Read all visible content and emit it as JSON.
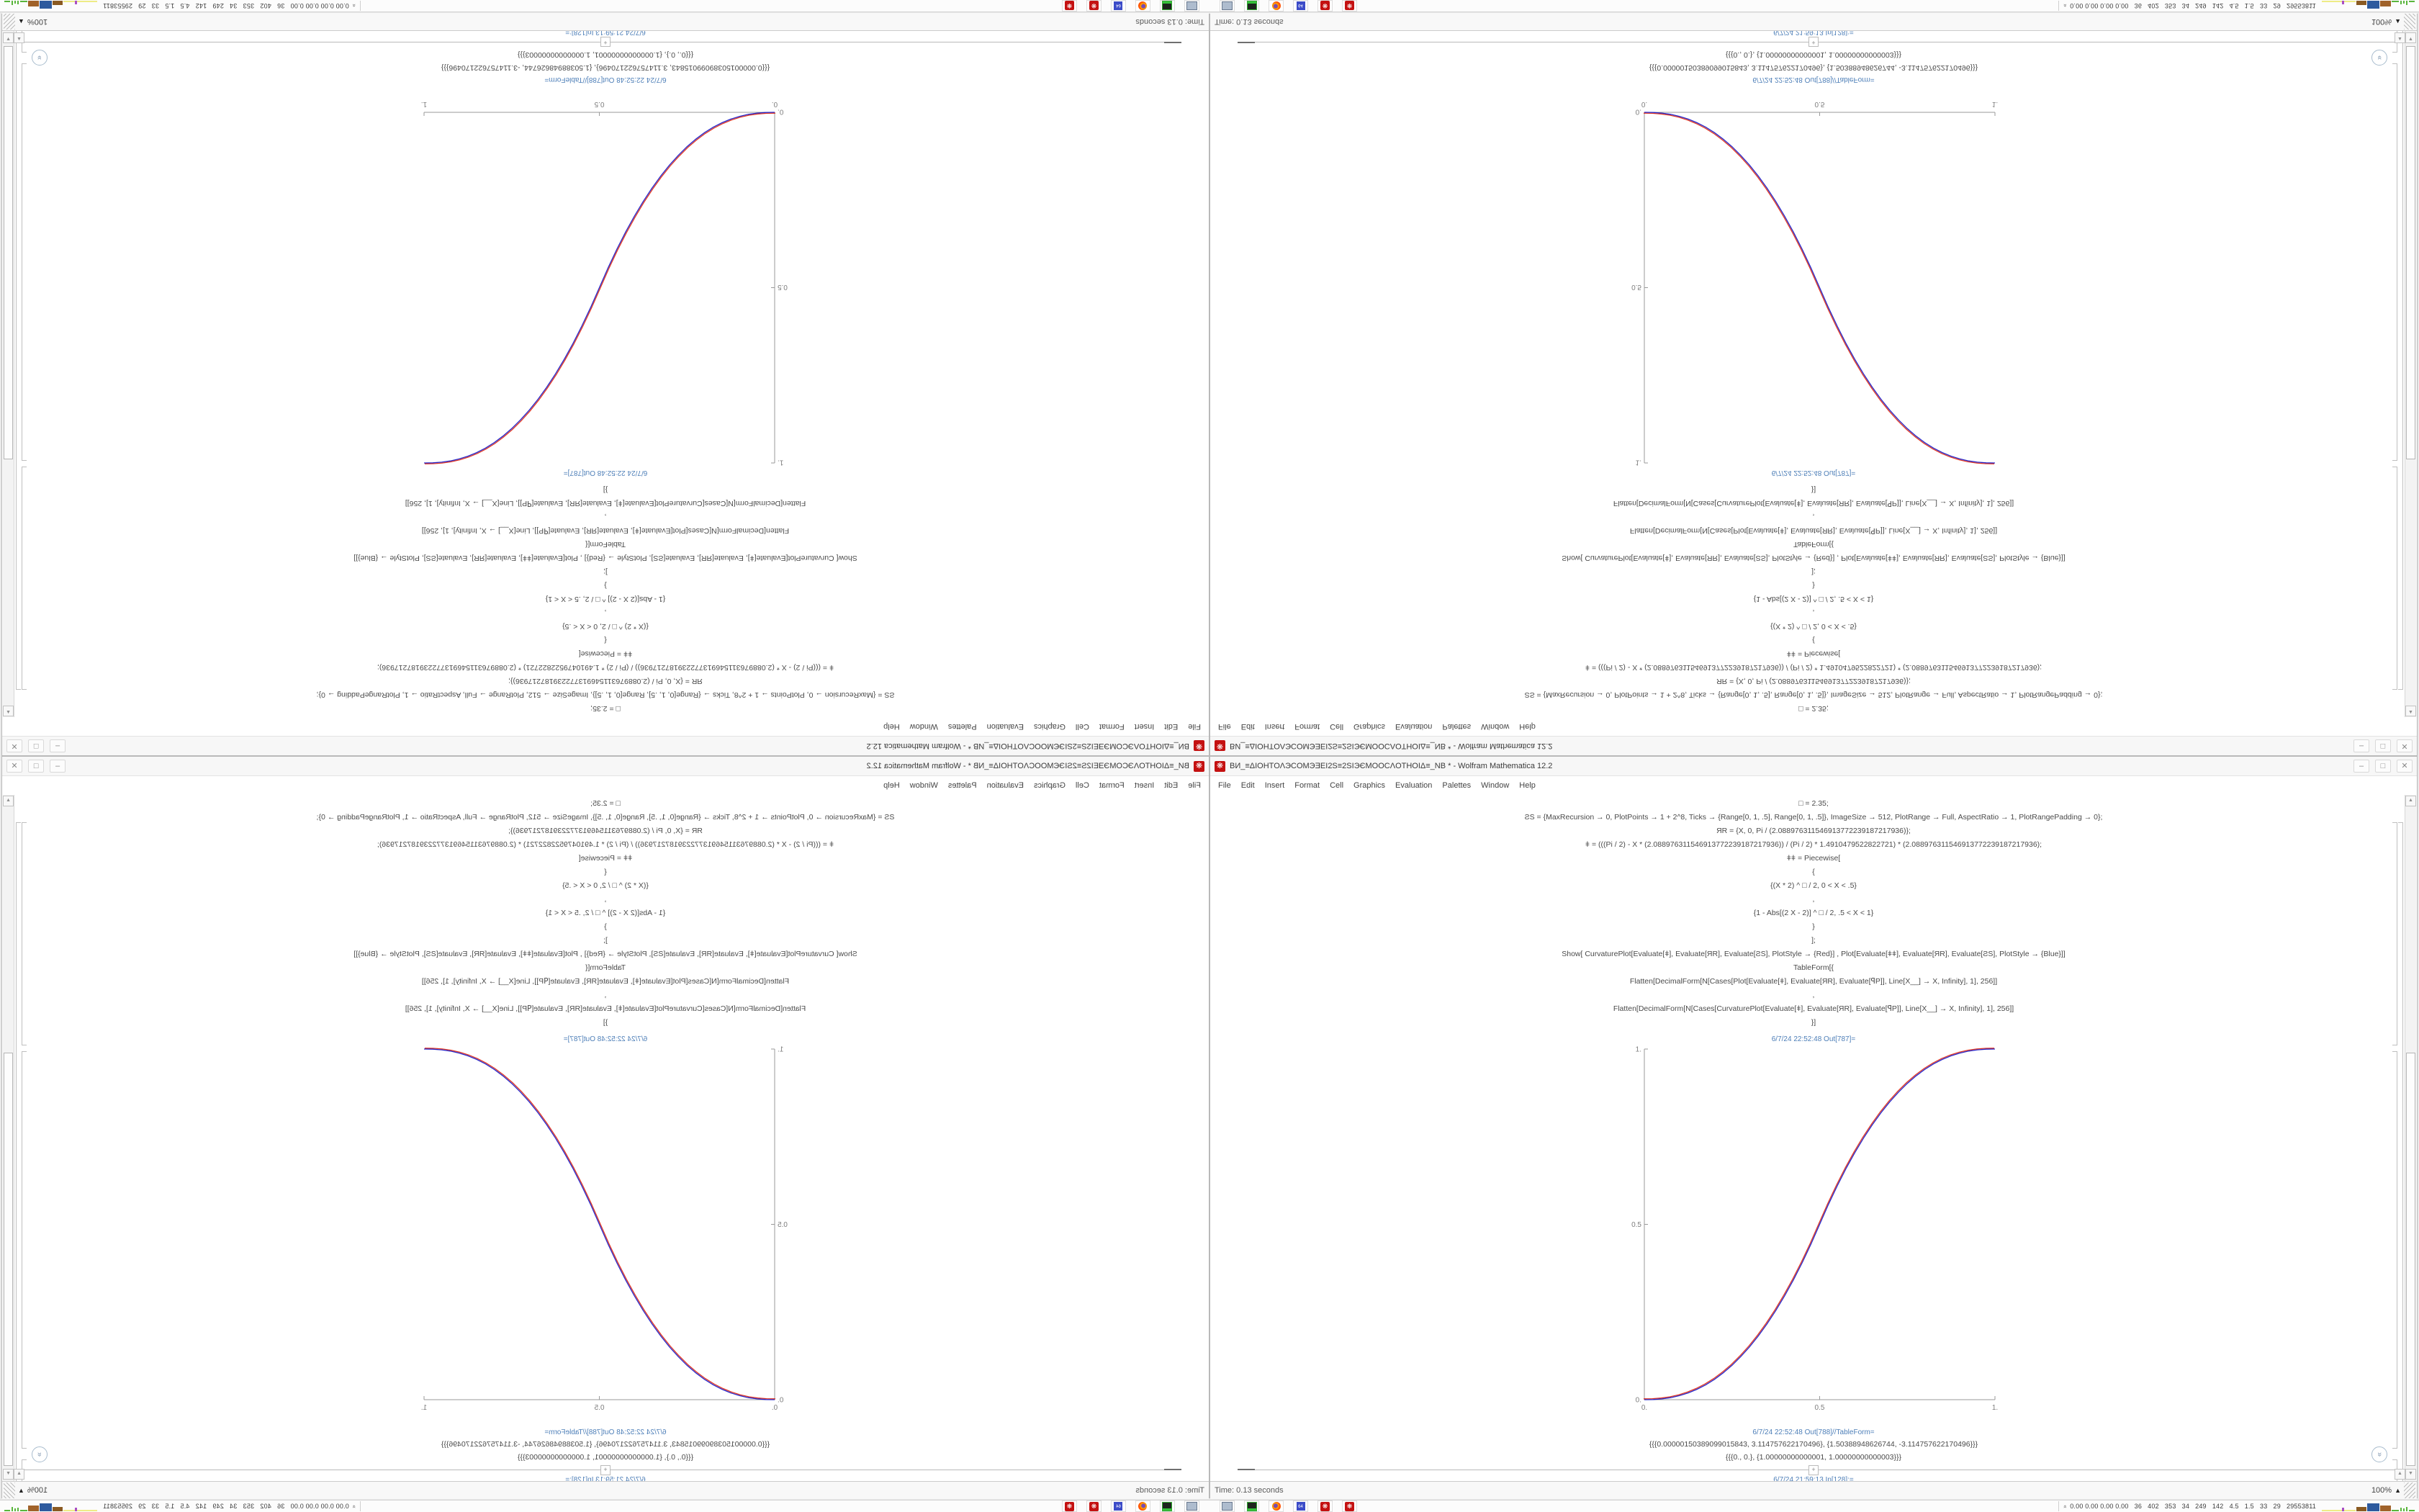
{
  "window": {
    "title": "ВИ_≡ΔIOHTOΛЭCOMЭƎEI2S≡2SIЭЄMOOCΛOTHOIΔ≡_NB * - Wolfram Mathematica 12.2",
    "app_icon_glyph": "❋",
    "menu": [
      "File",
      "Edit",
      "Insert",
      "Format",
      "Cell",
      "Graphics",
      "Evaluation",
      "Palettes",
      "Window",
      "Help"
    ],
    "controls": {
      "minimize": "–",
      "maximize": "□",
      "close": "✕"
    }
  },
  "notebook": {
    "code_lines": [
      "□ = 2.35;",
      "ƧS = {MaxRecursion → 0, PlotPoints → 1 + 2^8, Ticks → {Range[0, 1, .5], Range[0, 1, .5]}, ImageSize → 512, PlotRange → Full, AspectRatio → 1, PlotRangePadding → 0};",
      "ЯR = {X, 0, Pi / (2.088976311546913772239187217936)};",
      "ǂ = (((Pi / 2) - X * (2.088976311546913772239187217936)) / (Pi / 2) * 1.4910479522822721) * (2.088976311546913772239187217936);",
      "ǂǂ = Piecewise[",
      "{",
      "{(X * 2) ^ □ / 2, 0 < X < .5}",
      ",",
      "{1 - Abs[(2 X - 2)] ^ □ / 2, .5 < X < 1}",
      "}",
      "];",
      "Show[  CurvaturePlot[Evaluate[ǂ], Evaluate[ЯR], Evaluate[ƧS], PlotStyle → {Red}]  ,  Plot[Evaluate[ǂǂ], Evaluate[ЯR], Evaluate[ƧS], PlotStyle → {Blue}]]",
      "TableForm[{",
      "Flatten[DecimalForm[N[Cases[Plot[Evaluate[ǂ], Evaluate[ЯR], Evaluate[ꟼP]], Line[X__] → X, Infinity], 1], 256]]",
      ",",
      "Flatten[DecimalForm[N[Cases[CurvaturePlot[Evaluate[ǂ], Evaluate[ЯR], Evaluate[ꟼP]], Line[X__] → X, Infinity], 1], 256]]",
      "}]"
    ],
    "out_plot_label": "6/7/24 22:52:48 Out[787]=",
    "out_table_label": "6/7/24 22:52:48 Out[788]//TableForm=",
    "table_line1": "{{{0.00000150389099015843, 3.114757622170496}, {1.50388948626744, -3.114757622170496}}}",
    "table_line2": "{{{0., 0.}, {1.00000000000001, 1.00000000000003}}}",
    "next_in_label": "6/7/24 21:59:13 In[128]:=",
    "insert_plus": "+",
    "elide_chevron": "»"
  },
  "scrollbar": {
    "up": "▲",
    "down": "▼"
  },
  "statusbar": {
    "left": "Time: 0.13 seconds",
    "zoom": "100%",
    "zoom_triangle": "▲"
  },
  "taskbar": {
    "icons": [
      "computer-monitor",
      "disk-device",
      "firefox",
      "floppy-64",
      "mathematica",
      "mathematica"
    ],
    "floppy_label": "64",
    "mma_glyph": "❋",
    "tray_chevron": "»",
    "tray_text": "0.00 0.00 0.00 0.00   36   402   353   34   249   142   4.5   1.5   33   29   29553811",
    "sparkline": [
      {
        "w": 28,
        "h": 2,
        "c": "#eeec86",
        "gap": 0
      },
      {
        "w": 3,
        "h": 5,
        "c": "#a94fc4",
        "gap": 0
      },
      {
        "w": 16,
        "h": 2,
        "c": "#eeec86",
        "gap": 1
      },
      {
        "w": 14,
        "h": 6,
        "c": "#8a5a22",
        "gap": 1
      },
      {
        "w": 17,
        "h": 11,
        "c": "#2d5a9e",
        "gap": 1
      },
      {
        "w": 15,
        "h": 8,
        "c": "#a0622a",
        "gap": 1
      },
      {
        "w": 10,
        "h": 2,
        "c": "#59b53c",
        "gap": 2
      },
      {
        "w": 2,
        "h": 5,
        "c": "#59b53c",
        "gap": 2
      },
      {
        "w": 2,
        "h": 4,
        "c": "#59b53c",
        "gap": 2
      },
      {
        "w": 2,
        "h": 6,
        "c": "#59b53c",
        "gap": 2
      },
      {
        "w": 8,
        "h": 2,
        "c": "#59b53c",
        "gap": 0
      }
    ]
  },
  "chart_data": {
    "type": "line",
    "title": "",
    "xlabel": "",
    "ylabel": "",
    "xlim": [
      0,
      1
    ],
    "ylim": [
      0,
      1
    ],
    "x_ticks": [
      "0.",
      "0.5",
      "1."
    ],
    "y_ticks": [
      "0.",
      "0.5",
      "1."
    ],
    "grid": false,
    "legend_position": "none",
    "x": [
      0,
      0.025,
      0.05,
      0.075,
      0.1,
      0.125,
      0.15,
      0.175,
      0.2,
      0.225,
      0.25,
      0.275,
      0.3,
      0.325,
      0.35,
      0.375,
      0.4,
      0.425,
      0.45,
      0.475,
      0.5,
      0.525,
      0.55,
      0.575,
      0.6,
      0.625,
      0.65,
      0.675,
      0.7,
      0.725,
      0.75,
      0.775,
      0.8,
      0.825,
      0.85,
      0.875,
      0.9,
      0.925,
      0.95,
      0.975,
      1
    ],
    "series": [
      {
        "name": "CurvaturePlot (Red)",
        "color": "#e03522",
        "values": [
          0,
          0.0004,
          0.0022,
          0.0058,
          0.0114,
          0.0192,
          0.0295,
          0.0424,
          0.058,
          0.0766,
          0.098,
          0.1227,
          0.1505,
          0.1817,
          0.2163,
          0.2543,
          0.296,
          0.3413,
          0.3904,
          0.4432,
          0.5,
          0.5568,
          0.6096,
          0.6587,
          0.704,
          0.7457,
          0.7837,
          0.8183,
          0.8495,
          0.8773,
          0.902,
          0.9234,
          0.942,
          0.9576,
          0.9705,
          0.9808,
          0.9886,
          0.9942,
          0.9978,
          0.9996,
          1
        ]
      },
      {
        "name": "Plot (Blue)",
        "color": "#2626c9",
        "values": [
          0,
          0.0004,
          0.0022,
          0.0058,
          0.0114,
          0.0192,
          0.0295,
          0.0424,
          0.058,
          0.0766,
          0.098,
          0.1227,
          0.1505,
          0.1817,
          0.2163,
          0.2543,
          0.296,
          0.3413,
          0.3904,
          0.4432,
          0.5,
          0.5568,
          0.6096,
          0.6587,
          0.704,
          0.7457,
          0.7837,
          0.8183,
          0.8495,
          0.8773,
          0.902,
          0.9234,
          0.942,
          0.9576,
          0.9705,
          0.9808,
          0.9886,
          0.9942,
          0.9978,
          0.9996,
          1
        ]
      }
    ]
  }
}
